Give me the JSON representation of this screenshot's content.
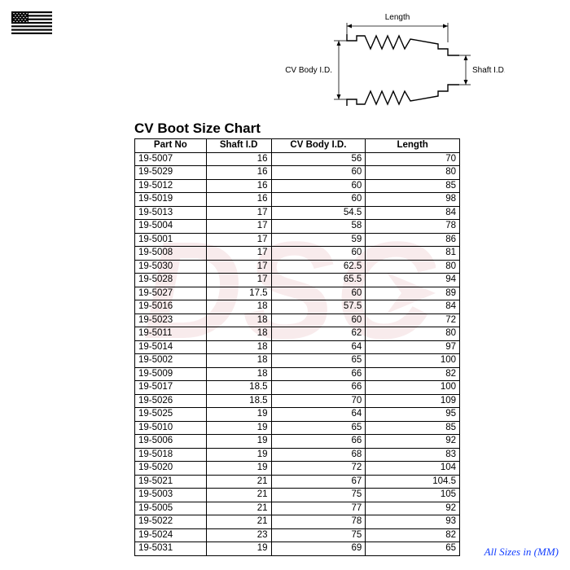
{
  "title": "CV Boot Size Chart",
  "footnote": "All Sizes in (MM)",
  "diagram": {
    "length_label": "Length",
    "body_label": "CV Body I.D.",
    "shaft_label": "Shaft I.D."
  },
  "table": {
    "columns": [
      "Part No",
      "Shaft I.D",
      "CV Body I.D.",
      "Length"
    ],
    "rows": [
      [
        "19-5007",
        "16",
        "56",
        "70"
      ],
      [
        "19-5029",
        "16",
        "60",
        "80"
      ],
      [
        "19-5012",
        "16",
        "60",
        "85"
      ],
      [
        "19-5019",
        "16",
        "60",
        "98"
      ],
      [
        "19-5013",
        "17",
        "54.5",
        "84"
      ],
      [
        "19-5004",
        "17",
        "58",
        "78"
      ],
      [
        "19-5001",
        "17",
        "59",
        "86"
      ],
      [
        "19-5008",
        "17",
        "60",
        "81"
      ],
      [
        "19-5030",
        "17",
        "62.5",
        "80"
      ],
      [
        "19-5028",
        "17",
        "65.5",
        "94"
      ],
      [
        "19-5027",
        "17.5",
        "60",
        "89"
      ],
      [
        "19-5016",
        "18",
        "57.5",
        "84"
      ],
      [
        "19-5023",
        "18",
        "60",
        "72"
      ],
      [
        "19-5011",
        "18",
        "62",
        "80"
      ],
      [
        "19-5014",
        "18",
        "64",
        "97"
      ],
      [
        "19-5002",
        "18",
        "65",
        "100"
      ],
      [
        "19-5009",
        "18",
        "66",
        "82"
      ],
      [
        "19-5017",
        "18.5",
        "66",
        "100"
      ],
      [
        "19-5026",
        "18.5",
        "70",
        "109"
      ],
      [
        "19-5025",
        "19",
        "64",
        "95"
      ],
      [
        "19-5010",
        "19",
        "65",
        "85"
      ],
      [
        "19-5006",
        "19",
        "66",
        "92"
      ],
      [
        "19-5018",
        "19",
        "68",
        "83"
      ],
      [
        "19-5020",
        "19",
        "72",
        "104"
      ],
      [
        "19-5021",
        "21",
        "67",
        "104.5"
      ],
      [
        "19-5003",
        "21",
        "75",
        "105"
      ],
      [
        "19-5005",
        "21",
        "77",
        "92"
      ],
      [
        "19-5022",
        "21",
        "78",
        "93"
      ],
      [
        "19-5024",
        "23",
        "75",
        "82"
      ],
      [
        "19-5031",
        "19",
        "69",
        "65"
      ]
    ]
  }
}
